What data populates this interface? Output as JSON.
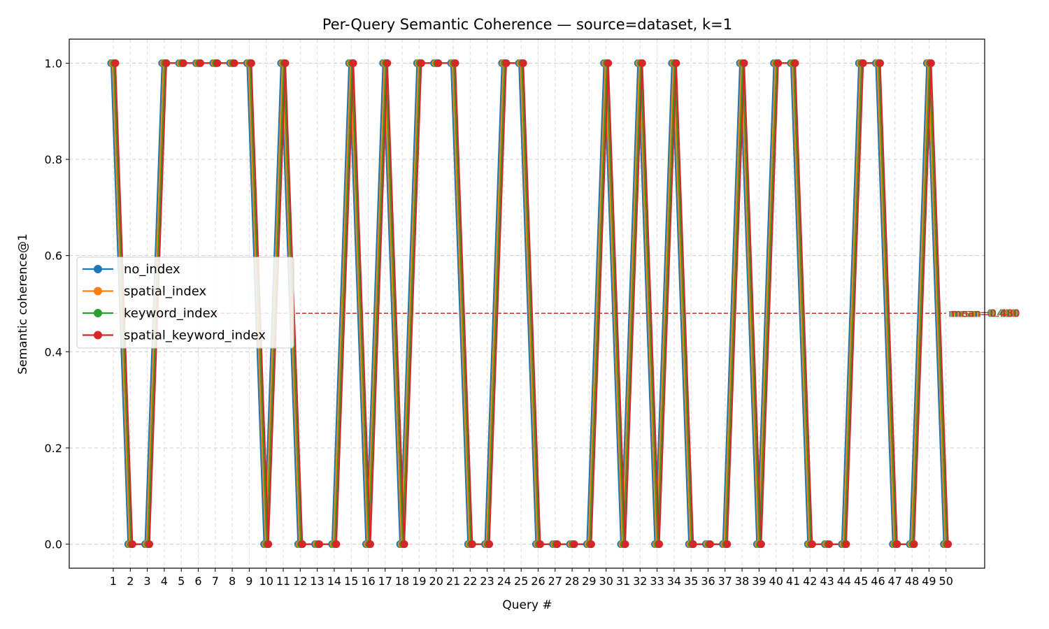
{
  "chart_data": {
    "type": "line",
    "title": "Per-Query Semantic Coherence — source=dataset, k=1",
    "xlabel": "Query #",
    "ylabel": "Semantic coherence@1",
    "ylim": [
      -0.05,
      1.05
    ],
    "yticks": [
      "0.0",
      "0.2",
      "0.4",
      "0.6",
      "0.8",
      "1.0"
    ],
    "grid": true,
    "legend_position": "center-left",
    "x": [
      "1",
      "2",
      "3",
      "4",
      "5",
      "6",
      "7",
      "8",
      "9",
      "10",
      "11",
      "12",
      "13",
      "14",
      "15",
      "16",
      "17",
      "18",
      "19",
      "20",
      "21",
      "22",
      "23",
      "24",
      "25",
      "26",
      "27",
      "28",
      "29",
      "30",
      "31",
      "32",
      "33",
      "34",
      "35",
      "36",
      "37",
      "38",
      "39",
      "40",
      "41",
      "42",
      "43",
      "44",
      "45",
      "46",
      "47",
      "48",
      "49",
      "50"
    ],
    "series": [
      {
        "name": "no_index",
        "color": "#1f77b4",
        "mean": 0.48,
        "mean_label": "mean=0.480",
        "values": [
          1,
          0,
          0,
          1,
          1,
          1,
          1,
          1,
          1,
          0,
          1,
          0,
          0,
          0,
          1,
          0,
          1,
          0,
          1,
          1,
          1,
          0,
          0,
          1,
          1,
          0,
          0,
          0,
          0,
          1,
          0,
          1,
          0,
          1,
          0,
          0,
          0,
          1,
          0,
          1,
          1,
          0,
          0,
          0,
          1,
          1,
          0,
          0,
          1,
          0
        ]
      },
      {
        "name": "spatial_index",
        "color": "#ff7f0e",
        "mean": 0.48,
        "mean_label": "mean=0.480",
        "values": [
          1,
          0,
          0,
          1,
          1,
          1,
          1,
          1,
          1,
          0,
          1,
          0,
          0,
          0,
          1,
          0,
          1,
          0,
          1,
          1,
          1,
          0,
          0,
          1,
          1,
          0,
          0,
          0,
          0,
          1,
          0,
          1,
          0,
          1,
          0,
          0,
          0,
          1,
          0,
          1,
          1,
          0,
          0,
          0,
          1,
          1,
          0,
          0,
          1,
          0
        ]
      },
      {
        "name": "keyword_index",
        "color": "#2ca02c",
        "mean": 0.48,
        "mean_label": "mean=0.480",
        "values": [
          1,
          0,
          0,
          1,
          1,
          1,
          1,
          1,
          1,
          0,
          1,
          0,
          0,
          0,
          1,
          0,
          1,
          0,
          1,
          1,
          1,
          0,
          0,
          1,
          1,
          0,
          0,
          0,
          0,
          1,
          0,
          1,
          0,
          1,
          0,
          0,
          0,
          1,
          0,
          1,
          1,
          0,
          0,
          0,
          1,
          1,
          0,
          0,
          1,
          0
        ]
      },
      {
        "name": "spatial_keyword_index",
        "color": "#d62728",
        "mean": 0.48,
        "mean_label": "mean=0.480",
        "values": [
          1,
          0,
          0,
          1,
          1,
          1,
          1,
          1,
          1,
          0,
          1,
          0,
          0,
          0,
          1,
          0,
          1,
          0,
          1,
          1,
          1,
          0,
          0,
          1,
          1,
          0,
          0,
          0,
          0,
          1,
          0,
          1,
          0,
          1,
          0,
          0,
          0,
          1,
          0,
          1,
          1,
          0,
          0,
          0,
          1,
          1,
          0,
          0,
          1,
          0
        ]
      }
    ]
  }
}
